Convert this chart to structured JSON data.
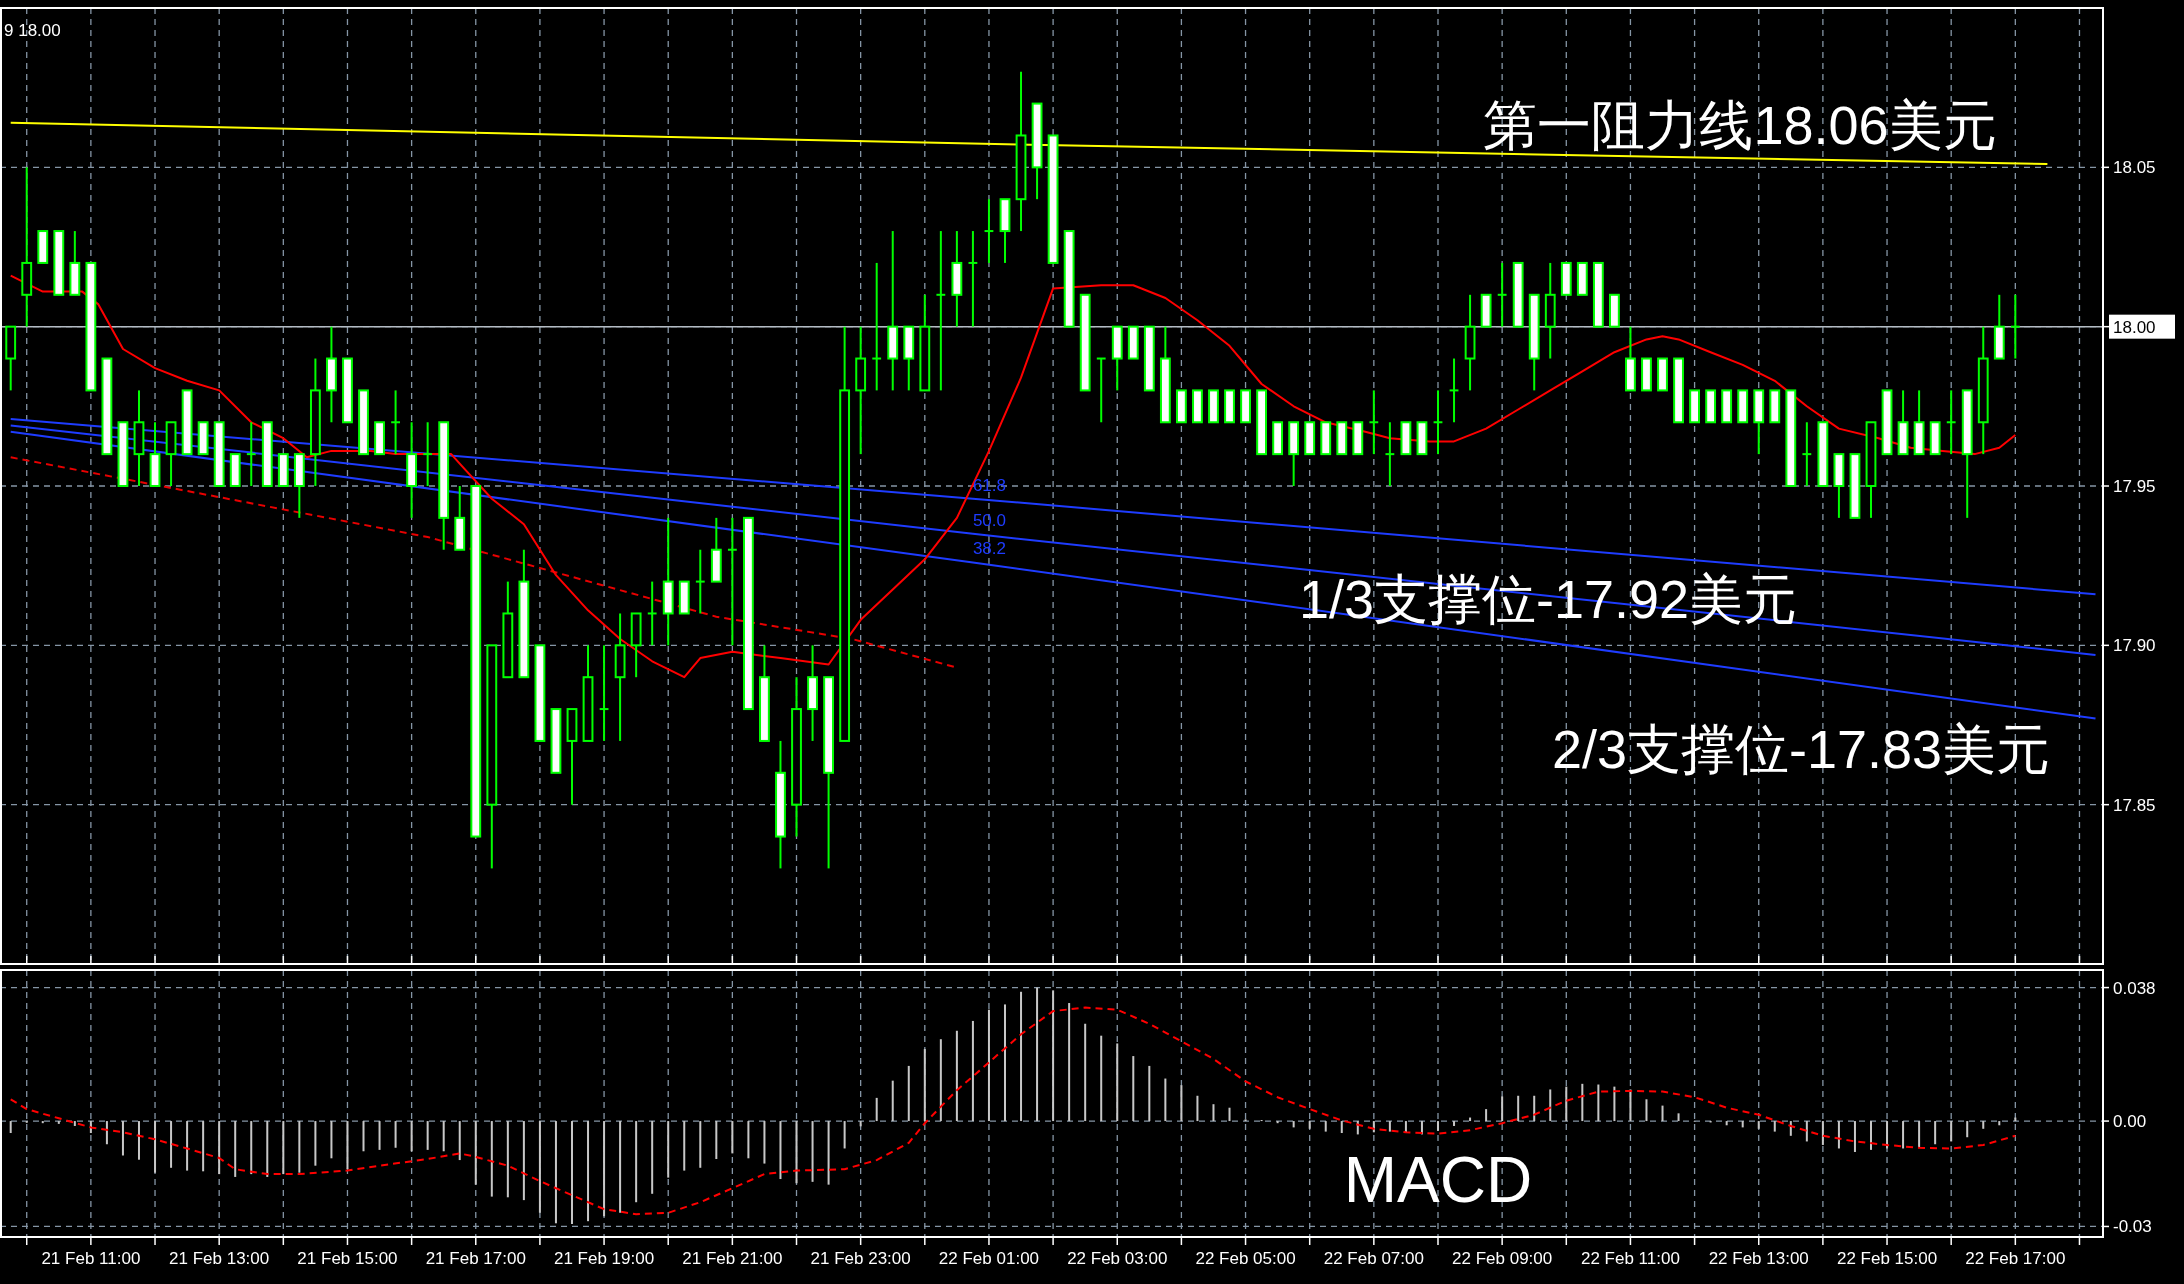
{
  "chart_data": [
    {
      "type": "candlestick",
      "xlim": [
        "--02-21T09:35",
        "--02-22T18:22"
      ],
      "ylim": [
        17.8,
        18.1
      ],
      "yticks": [
        {
          "value": 17.85,
          "label": "17.85"
        },
        {
          "value": 17.9,
          "label": "17.90"
        },
        {
          "value": 17.95,
          "label": "17.95"
        },
        {
          "value": 18.0,
          "label": "18.00"
        },
        {
          "value": 18.05,
          "label": "18.05"
        }
      ],
      "xticks": [
        {
          "value": "--02-21T10:00",
          "label": null
        },
        {
          "value": "--02-21T11:00",
          "label": null
        },
        {
          "value": "--02-21T12:00",
          "label": null
        },
        {
          "value": "--02-21T13:00",
          "label": null
        },
        {
          "value": "--02-21T14:00",
          "label": null
        },
        {
          "value": "--02-21T15:00",
          "label": null
        },
        {
          "value": "--02-21T16:00",
          "label": null
        },
        {
          "value": "--02-21T17:00",
          "label": null
        },
        {
          "value": "--02-21T18:00",
          "label": null
        },
        {
          "value": "--02-21T19:00",
          "label": null
        },
        {
          "value": "--02-21T20:00",
          "label": null
        },
        {
          "value": "--02-21T21:00",
          "label": null
        },
        {
          "value": "--02-21T22:00",
          "label": null
        },
        {
          "value": "--02-21T23:00",
          "label": null
        },
        {
          "value": "--02-22T00:00",
          "label": null
        },
        {
          "value": "--02-22T01:00",
          "label": null
        },
        {
          "value": "--02-22T02:00",
          "label": null
        },
        {
          "value": "--02-22T03:00",
          "label": null
        },
        {
          "value": "--02-22T04:00",
          "label": null
        },
        {
          "value": "--02-22T05:00",
          "label": null
        },
        {
          "value": "--02-22T06:00",
          "label": null
        },
        {
          "value": "--02-22T07:00",
          "label": null
        },
        {
          "value": "--02-22T08:00",
          "label": null
        },
        {
          "value": "--02-22T09:00",
          "label": null
        },
        {
          "value": "--02-22T10:00",
          "label": null
        },
        {
          "value": "--02-22T11:00",
          "label": null
        },
        {
          "value": "--02-22T12:00",
          "label": null
        },
        {
          "value": "--02-22T13:00",
          "label": null
        },
        {
          "value": "--02-22T14:00",
          "label": null
        },
        {
          "value": "--02-22T15:00",
          "label": null
        },
        {
          "value": "--02-22T16:00",
          "label": null
        },
        {
          "value": "--02-22T17:00",
          "label": null
        },
        {
          "value": "--02-22T18:00",
          "label": null
        }
      ],
      "tick_labels": "y",
      "grid": true,
      "ref_lines": [
        {
          "axis": "y",
          "value": 18.0,
          "color": "#b4bcc4"
        }
      ],
      "annotations": [
        "9 18.00",
        "第一阻力线18.06美元",
        "1/3支撑位-17.92美元",
        "2/3支撑位-17.83美元"
      ],
      "x": [
        "--02-21T09:45",
        "--02-21T10:00",
        "--02-21T10:15",
        "--02-21T10:30",
        "--02-21T10:45",
        "--02-21T11:00",
        "--02-21T11:15",
        "--02-21T11:30",
        "--02-21T11:45",
        "--02-21T12:00",
        "--02-21T12:15",
        "--02-21T12:30",
        "--02-21T12:45",
        "--02-21T13:00",
        "--02-21T13:15",
        "--02-21T13:30",
        "--02-21T13:45",
        "--02-21T14:00",
        "--02-21T14:15",
        "--02-21T14:30",
        "--02-21T14:45",
        "--02-21T15:00",
        "--02-21T15:15",
        "--02-21T15:30",
        "--02-21T15:45",
        "--02-21T16:00",
        "--02-21T16:15",
        "--02-21T16:30",
        "--02-21T16:45",
        "--02-21T17:00",
        "--02-21T17:15",
        "--02-21T17:30",
        "--02-21T17:45",
        "--02-21T18:00",
        "--02-21T18:15",
        "--02-21T18:30",
        "--02-21T18:45",
        "--02-21T19:00",
        "--02-21T19:15",
        "--02-21T19:30",
        "--02-21T19:45",
        "--02-21T20:00",
        "--02-21T20:15",
        "--02-21T20:30",
        "--02-21T20:45",
        "--02-21T21:00",
        "--02-21T21:15",
        "--02-21T21:30",
        "--02-21T21:45",
        "--02-21T22:00",
        "--02-21T22:15",
        "--02-21T22:30",
        "--02-21T22:45",
        "--02-21T23:00",
        "--02-21T23:15",
        "--02-21T23:30",
        "--02-21T23:45",
        "--02-22T00:00",
        "--02-22T00:15",
        "--02-22T00:30",
        "--02-22T00:45",
        "--02-22T01:00",
        "--02-22T01:15",
        "--02-22T01:30",
        "--02-22T01:45",
        "--02-22T02:00",
        "--02-22T02:15",
        "--02-22T02:30",
        "--02-22T02:45",
        "--02-22T03:00",
        "--02-22T03:15",
        "--02-22T03:30",
        "--02-22T03:45",
        "--02-22T04:00",
        "--02-22T04:15",
        "--02-22T04:30",
        "--02-22T04:45",
        "--02-22T05:00",
        "--02-22T05:15",
        "--02-22T05:30",
        "--02-22T05:45",
        "--02-22T06:00",
        "--02-22T06:15",
        "--02-22T06:30",
        "--02-22T06:45",
        "--02-22T07:00",
        "--02-22T07:15",
        "--02-22T07:30",
        "--02-22T07:45",
        "--02-22T08:00",
        "--02-22T08:15",
        "--02-22T08:30",
        "--02-22T08:45",
        "--02-22T09:00",
        "--02-22T09:15",
        "--02-22T09:30",
        "--02-22T09:45",
        "--02-22T10:00",
        "--02-22T10:15",
        "--02-22T10:30",
        "--02-22T10:45",
        "--02-22T11:00",
        "--02-22T11:15",
        "--02-22T11:30",
        "--02-22T11:45",
        "--02-22T12:00",
        "--02-22T12:15",
        "--02-22T12:30",
        "--02-22T12:45",
        "--02-22T13:00",
        "--02-22T13:15",
        "--02-22T13:30",
        "--02-22T13:45",
        "--02-22T14:00",
        "--02-22T14:15",
        "--02-22T14:30",
        "--02-22T14:45",
        "--02-22T15:00",
        "--02-22T15:15",
        "--02-22T15:30",
        "--02-22T15:45",
        "--02-22T16:00",
        "--02-22T16:15",
        "--02-22T16:30",
        "--02-22T16:45",
        "--02-22T17:00"
      ],
      "ohlc": [
        [
          17.99,
          18.0,
          17.98,
          18.0
        ],
        [
          18.01,
          18.05,
          18.0,
          18.02
        ],
        [
          18.03,
          18.03,
          18.02,
          18.02
        ],
        [
          18.03,
          18.03,
          18.01,
          18.01
        ],
        [
          18.02,
          18.03,
          18.01,
          18.01
        ],
        [
          18.02,
          18.02,
          17.98,
          17.98
        ],
        [
          17.99,
          17.99,
          17.96,
          17.96
        ],
        [
          17.97,
          17.97,
          17.95,
          17.95
        ],
        [
          17.96,
          17.98,
          17.95,
          17.97
        ],
        [
          17.96,
          17.97,
          17.95,
          17.95
        ],
        [
          17.96,
          17.97,
          17.95,
          17.97
        ],
        [
          17.98,
          17.98,
          17.96,
          17.96
        ],
        [
          17.97,
          17.97,
          17.96,
          17.96
        ],
        [
          17.97,
          17.97,
          17.95,
          17.95
        ],
        [
          17.96,
          17.96,
          17.95,
          17.95
        ],
        [
          17.96,
          17.97,
          17.95,
          17.96
        ],
        [
          17.97,
          17.97,
          17.95,
          17.95
        ],
        [
          17.96,
          17.96,
          17.95,
          17.95
        ],
        [
          17.96,
          17.96,
          17.94,
          17.95
        ],
        [
          17.96,
          17.99,
          17.95,
          17.98
        ],
        [
          17.99,
          18.0,
          17.97,
          17.98
        ],
        [
          17.99,
          17.99,
          17.97,
          17.97
        ],
        [
          17.98,
          17.98,
          17.96,
          17.96
        ],
        [
          17.97,
          17.97,
          17.96,
          17.96
        ],
        [
          17.97,
          17.98,
          17.96,
          17.97
        ],
        [
          17.96,
          17.97,
          17.94,
          17.95
        ],
        [
          17.96,
          17.97,
          17.95,
          17.96
        ],
        [
          17.97,
          17.97,
          17.93,
          17.94
        ],
        [
          17.94,
          17.95,
          17.93,
          17.93
        ],
        [
          17.95,
          17.95,
          17.84,
          17.84
        ],
        [
          17.85,
          17.9,
          17.83,
          17.9
        ],
        [
          17.89,
          17.92,
          17.89,
          17.91
        ],
        [
          17.92,
          17.93,
          17.89,
          17.89
        ],
        [
          17.9,
          17.9,
          17.87,
          17.87
        ],
        [
          17.88,
          17.88,
          17.86,
          17.86
        ],
        [
          17.87,
          17.88,
          17.85,
          17.88
        ],
        [
          17.87,
          17.9,
          17.87,
          17.89
        ],
        [
          17.88,
          17.9,
          17.87,
          17.88
        ],
        [
          17.89,
          17.91,
          17.87,
          17.9
        ],
        [
          17.9,
          17.91,
          17.89,
          17.91
        ],
        [
          17.91,
          17.92,
          17.9,
          17.91
        ],
        [
          17.92,
          17.94,
          17.9,
          17.91
        ],
        [
          17.92,
          17.92,
          17.91,
          17.91
        ],
        [
          17.92,
          17.93,
          17.91,
          17.92
        ],
        [
          17.93,
          17.94,
          17.92,
          17.92
        ],
        [
          17.93,
          17.94,
          17.9,
          17.93
        ],
        [
          17.94,
          17.94,
          17.88,
          17.88
        ],
        [
          17.89,
          17.9,
          17.87,
          17.87
        ],
        [
          17.86,
          17.87,
          17.83,
          17.84
        ],
        [
          17.85,
          17.89,
          17.84,
          17.88
        ],
        [
          17.89,
          17.9,
          17.87,
          17.88
        ],
        [
          17.89,
          17.89,
          17.83,
          17.86
        ],
        [
          17.87,
          18.0,
          17.87,
          17.98
        ],
        [
          17.98,
          18.0,
          17.96,
          17.99
        ],
        [
          17.99,
          18.02,
          17.98,
          17.99
        ],
        [
          18.0,
          18.03,
          17.98,
          17.99
        ],
        [
          18.0,
          18.0,
          17.98,
          17.99
        ],
        [
          17.98,
          18.01,
          17.98,
          18.0
        ],
        [
          18.01,
          18.03,
          17.98,
          18.01
        ],
        [
          18.02,
          18.03,
          18.0,
          18.01
        ],
        [
          18.02,
          18.03,
          18.0,
          18.02
        ],
        [
          18.03,
          18.04,
          18.02,
          18.03
        ],
        [
          18.04,
          18.04,
          18.02,
          18.03
        ],
        [
          18.04,
          18.08,
          18.03,
          18.06
        ],
        [
          18.07,
          18.07,
          18.04,
          18.05
        ],
        [
          18.06,
          18.06,
          18.02,
          18.02
        ],
        [
          18.03,
          18.03,
          18.0,
          18.0
        ],
        [
          18.01,
          18.01,
          17.98,
          17.98
        ],
        [
          17.99,
          17.99,
          17.97,
          17.99
        ],
        [
          18.0,
          18.0,
          17.98,
          17.99
        ],
        [
          18.0,
          18.0,
          17.99,
          17.99
        ],
        [
          18.0,
          18.0,
          17.98,
          17.98
        ],
        [
          17.99,
          18.0,
          17.97,
          17.97
        ],
        [
          17.98,
          17.98,
          17.97,
          17.97
        ],
        [
          17.98,
          17.98,
          17.97,
          17.97
        ],
        [
          17.98,
          17.98,
          17.97,
          17.97
        ],
        [
          17.98,
          17.98,
          17.97,
          17.97
        ],
        [
          17.98,
          17.98,
          17.97,
          17.97
        ],
        [
          17.98,
          17.98,
          17.96,
          17.96
        ],
        [
          17.97,
          17.97,
          17.96,
          17.96
        ],
        [
          17.97,
          17.97,
          17.95,
          17.96
        ],
        [
          17.97,
          17.97,
          17.96,
          17.96
        ],
        [
          17.97,
          17.97,
          17.96,
          17.96
        ],
        [
          17.97,
          17.97,
          17.96,
          17.96
        ],
        [
          17.97,
          17.97,
          17.96,
          17.96
        ],
        [
          17.97,
          17.98,
          17.96,
          17.97
        ],
        [
          17.96,
          17.97,
          17.95,
          17.96
        ],
        [
          17.97,
          17.97,
          17.96,
          17.96
        ],
        [
          17.97,
          17.97,
          17.96,
          17.96
        ],
        [
          17.97,
          17.98,
          17.96,
          17.97
        ],
        [
          17.98,
          17.99,
          17.97,
          17.98
        ],
        [
          17.99,
          18.01,
          17.98,
          18.0
        ],
        [
          18.01,
          18.01,
          18.0,
          18.0
        ],
        [
          18.01,
          18.02,
          18.0,
          18.01
        ],
        [
          18.02,
          18.02,
          18.0,
          18.0
        ],
        [
          18.01,
          18.01,
          17.98,
          17.99
        ],
        [
          18.0,
          18.02,
          17.99,
          18.01
        ],
        [
          18.02,
          18.02,
          18.01,
          18.01
        ],
        [
          18.02,
          18.02,
          18.01,
          18.01
        ],
        [
          18.02,
          18.02,
          18.0,
          18.0
        ],
        [
          18.01,
          18.01,
          18.0,
          18.0
        ],
        [
          17.99,
          18.0,
          17.98,
          17.98
        ],
        [
          17.99,
          17.99,
          17.98,
          17.98
        ],
        [
          17.99,
          17.99,
          17.98,
          17.98
        ],
        [
          17.99,
          17.99,
          17.97,
          17.97
        ],
        [
          17.98,
          17.98,
          17.97,
          17.97
        ],
        [
          17.98,
          17.98,
          17.97,
          17.97
        ],
        [
          17.98,
          17.98,
          17.97,
          17.97
        ],
        [
          17.98,
          17.98,
          17.97,
          17.97
        ],
        [
          17.98,
          17.98,
          17.96,
          17.97
        ],
        [
          17.98,
          17.98,
          17.97,
          17.97
        ],
        [
          17.98,
          17.98,
          17.95,
          17.95
        ],
        [
          17.96,
          17.97,
          17.95,
          17.96
        ],
        [
          17.97,
          17.97,
          17.95,
          17.95
        ],
        [
          17.96,
          17.96,
          17.94,
          17.95
        ],
        [
          17.96,
          17.96,
          17.94,
          17.94
        ],
        [
          17.95,
          17.97,
          17.94,
          17.97
        ],
        [
          17.98,
          17.98,
          17.96,
          17.96
        ],
        [
          17.97,
          17.98,
          17.96,
          17.96
        ],
        [
          17.97,
          17.98,
          17.96,
          17.96
        ],
        [
          17.97,
          17.97,
          17.96,
          17.96
        ],
        [
          17.97,
          17.98,
          17.96,
          17.97
        ],
        [
          17.98,
          17.98,
          17.94,
          17.96
        ],
        [
          17.97,
          18.0,
          17.96,
          17.99
        ],
        [
          18.0,
          18.01,
          17.99,
          17.99
        ],
        [
          18.0,
          18.01,
          17.99,
          18.0
        ]
      ],
      "series": [
        {
          "type": "line",
          "color": "#ffff00",
          "x": [
            "--02-21T09:45",
            "--02-22T01:52",
            "--02-22T17:30"
          ],
          "values": [
            18.064,
            18.057,
            18.051
          ]
        },
        {
          "type": "line",
          "name": "61.8",
          "color": "#1e3cff",
          "x": [
            "--02-21T09:45",
            "--02-22T00:45",
            "--02-22T18:15"
          ],
          "values": [
            17.971,
            17.946,
            17.916
          ]
        },
        {
          "type": "line",
          "name": "50.0",
          "color": "#1e3cff",
          "x": [
            "--02-21T09:45",
            "--02-22T00:45",
            "--02-22T18:15"
          ],
          "values": [
            17.969,
            17.935,
            17.897
          ]
        },
        {
          "type": "line",
          "name": "38.2",
          "color": "#1e3cff",
          "x": [
            "--02-21T09:45",
            "--02-22T00:45",
            "--02-22T18:15"
          ],
          "values": [
            17.967,
            17.926,
            17.877
          ]
        },
        {
          "type": "line",
          "color": "#e80000",
          "line_style": "dashed",
          "x": [
            "--02-21T09:45",
            "--02-21T16:15",
            "--02-21T20:45",
            "--02-21T22:52",
            "--02-22T00:30"
          ],
          "values": [
            17.959,
            17.934,
            17.909,
            17.902,
            17.893
          ]
        },
        {
          "type": "line",
          "color": "#ff0000",
          "x": [
            "--02-21T09:45",
            "--02-21T10:15",
            "--02-21T10:52",
            "--02-21T11:07",
            "--02-21T11:30",
            "--02-21T12:00",
            "--02-21T12:30",
            "--02-21T13:00",
            "--02-21T13:30",
            "--02-21T14:00",
            "--02-21T14:22",
            "--02-21T14:45",
            "--02-21T15:22",
            "--02-21T15:45",
            "--02-21T16:37",
            "--02-21T16:45",
            "--02-21T17:15",
            "--02-21T17:45",
            "--02-21T18:15",
            "--02-21T18:45",
            "--02-21T19:15",
            "--02-21T19:45",
            "--02-21T20:15",
            "--02-21T20:30",
            "--02-21T21:00",
            "--02-21T21:45",
            "--02-21T22:30",
            "--02-21T23:00",
            "--02-22T00:00",
            "--02-22T00:30",
            "--02-22T01:00",
            "--02-22T01:30",
            "--02-22T02:00",
            "--02-22T02:45",
            "--02-22T03:15",
            "--02-22T03:45",
            "--02-22T04:15",
            "--02-22T04:45",
            "--02-22T05:15",
            "--02-22T05:45",
            "--02-22T06:15",
            "--02-22T06:52",
            "--02-22T07:15",
            "--02-22T07:52",
            "--02-22T08:15",
            "--02-22T08:45",
            "--02-22T09:15",
            "--02-22T09:45",
            "--02-22T10:15",
            "--02-22T10:45",
            "--02-22T11:15",
            "--02-22T11:30",
            "--02-22T11:45",
            "--02-22T12:15",
            "--02-22T12:45",
            "--02-22T13:15",
            "--02-22T13:45",
            "--02-22T14:15",
            "--02-22T14:52",
            "--02-22T15:22",
            "--02-22T15:52",
            "--02-22T16:22",
            "--02-22T16:45",
            "--02-22T17:00"
          ],
          "values": [
            18.016,
            18.011,
            18.011,
            18.007,
            17.993,
            17.987,
            17.983,
            17.98,
            17.97,
            17.965,
            17.959,
            17.961,
            17.961,
            17.96,
            17.96,
            17.957,
            17.946,
            17.938,
            17.922,
            17.911,
            17.902,
            17.895,
            17.89,
            17.896,
            17.898,
            17.896,
            17.894,
            17.908,
            17.927,
            17.94,
            17.961,
            17.984,
            18.012,
            18.013,
            18.013,
            18.009,
            18.002,
            17.994,
            17.982,
            17.975,
            17.97,
            17.967,
            17.965,
            17.964,
            17.964,
            17.968,
            17.974,
            17.98,
            17.986,
            17.992,
            17.996,
            17.997,
            17.996,
            17.992,
            17.988,
            17.983,
            17.975,
            17.968,
            17.965,
            17.962,
            17.961,
            17.96,
            17.962,
            17.966
          ]
        }
      ]
    },
    {
      "type": "bar",
      "xlim": [
        "--02-21T09:35",
        "--02-22T18:22"
      ],
      "ylim": [
        -0.033,
        0.043
      ],
      "yticks": [
        {
          "value": 0.038,
          "label": "0.038"
        },
        {
          "value": 0,
          "label": "0.00"
        },
        {
          "value": -0.03,
          "label": "-0.03"
        }
      ],
      "xticks": [
        {
          "value": "--02-21T10:00",
          "label": null
        },
        {
          "value": "--02-21T11:00",
          "label": "21 Feb 11:00"
        },
        {
          "value": "--02-21T12:00",
          "label": null
        },
        {
          "value": "--02-21T13:00",
          "label": "21 Feb 13:00"
        },
        {
          "value": "--02-21T14:00",
          "label": null
        },
        {
          "value": "--02-21T15:00",
          "label": "21 Feb 15:00"
        },
        {
          "value": "--02-21T16:00",
          "label": null
        },
        {
          "value": "--02-21T17:00",
          "label": "21 Feb 17:00"
        },
        {
          "value": "--02-21T18:00",
          "label": null
        },
        {
          "value": "--02-21T19:00",
          "label": "21 Feb 19:00"
        },
        {
          "value": "--02-21T20:00",
          "label": null
        },
        {
          "value": "--02-21T21:00",
          "label": "21 Feb 21:00"
        },
        {
          "value": "--02-21T22:00",
          "label": null
        },
        {
          "value": "--02-21T23:00",
          "label": "21 Feb 23:00"
        },
        {
          "value": "--02-22T00:00",
          "label": null
        },
        {
          "value": "--02-22T01:00",
          "label": "22 Feb 01:00"
        },
        {
          "value": "--02-22T02:00",
          "label": null
        },
        {
          "value": "--02-22T03:00",
          "label": "22 Feb 03:00"
        },
        {
          "value": "--02-22T04:00",
          "label": null
        },
        {
          "value": "--02-22T05:00",
          "label": "22 Feb 05:00"
        },
        {
          "value": "--02-22T06:00",
          "label": null
        },
        {
          "value": "--02-22T07:00",
          "label": "22 Feb 07:00"
        },
        {
          "value": "--02-22T08:00",
          "label": null
        },
        {
          "value": "--02-22T09:00",
          "label": "22 Feb 09:00"
        },
        {
          "value": "--02-22T10:00",
          "label": null
        },
        {
          "value": "--02-22T11:00",
          "label": "22 Feb 11:00"
        },
        {
          "value": "--02-22T12:00",
          "label": null
        },
        {
          "value": "--02-22T13:00",
          "label": "22 Feb 13:00"
        },
        {
          "value": "--02-22T14:00",
          "label": null
        },
        {
          "value": "--02-22T15:00",
          "label": "22 Feb 15:00"
        },
        {
          "value": "--02-22T16:00",
          "label": null
        },
        {
          "value": "--02-22T17:00",
          "label": "22 Feb 17:00"
        },
        {
          "value": "--02-22T18:00",
          "label": null
        }
      ],
      "grid": true,
      "annotations": [
        "MACD"
      ],
      "series": [
        {
          "type": "bar",
          "color": "#c8c8c8",
          "x": [
            "--02-21T09:45",
            "--02-21T10:00",
            "--02-21T10:15",
            "--02-21T10:30",
            "--02-21T10:45",
            "--02-21T11:00",
            "--02-21T11:15",
            "--02-21T11:30",
            "--02-21T11:45",
            "--02-21T12:00",
            "--02-21T12:15",
            "--02-21T12:30",
            "--02-21T12:45",
            "--02-21T13:00",
            "--02-21T13:15",
            "--02-21T13:30",
            "--02-21T13:45",
            "--02-21T14:00",
            "--02-21T14:15",
            "--02-21T14:30",
            "--02-21T14:45",
            "--02-21T15:00",
            "--02-21T15:15",
            "--02-21T15:30",
            "--02-21T15:45",
            "--02-21T16:00",
            "--02-21T16:15",
            "--02-21T16:30",
            "--02-21T16:45",
            "--02-21T17:00",
            "--02-21T17:15",
            "--02-21T17:30",
            "--02-21T17:45",
            "--02-21T18:00",
            "--02-21T18:15",
            "--02-21T18:30",
            "--02-21T18:45",
            "--02-21T19:00",
            "--02-21T19:15",
            "--02-21T19:30",
            "--02-21T19:45",
            "--02-21T20:00",
            "--02-21T20:15",
            "--02-21T20:30",
            "--02-21T20:45",
            "--02-21T21:00",
            "--02-21T21:15",
            "--02-21T21:30",
            "--02-21T21:45",
            "--02-21T22:00",
            "--02-21T22:15",
            "--02-21T22:30",
            "--02-21T22:45",
            "--02-21T23:00",
            "--02-21T23:15",
            "--02-21T23:30",
            "--02-21T23:45",
            "--02-22T00:00",
            "--02-22T00:15",
            "--02-22T00:30",
            "--02-22T00:45",
            "--02-22T01:00",
            "--02-22T01:15",
            "--02-22T01:30",
            "--02-22T01:45",
            "--02-22T02:00",
            "--02-22T02:15",
            "--02-22T02:30",
            "--02-22T02:45",
            "--02-22T03:00",
            "--02-22T03:15",
            "--02-22T03:30",
            "--02-22T03:45",
            "--02-22T04:00",
            "--02-22T04:15",
            "--02-22T04:30",
            "--02-22T04:45",
            "--02-22T05:00",
            "--02-22T05:15",
            "--02-22T05:30",
            "--02-22T05:45",
            "--02-22T06:00",
            "--02-22T06:15",
            "--02-22T06:30",
            "--02-22T06:45",
            "--02-22T07:00",
            "--02-22T07:15",
            "--02-22T07:30",
            "--02-22T07:45",
            "--02-22T08:00",
            "--02-22T08:15",
            "--02-22T08:30",
            "--02-22T08:45",
            "--02-22T09:00",
            "--02-22T09:15",
            "--02-22T09:30",
            "--02-22T09:45",
            "--02-22T10:00",
            "--02-22T10:15",
            "--02-22T10:30",
            "--02-22T10:45",
            "--02-22T11:00",
            "--02-22T11:15",
            "--02-22T11:30",
            "--02-22T11:45",
            "--02-22T12:00",
            "--02-22T12:15",
            "--02-22T12:30",
            "--02-22T12:45",
            "--02-22T13:00",
            "--02-22T13:15",
            "--02-22T13:30",
            "--02-22T13:45",
            "--02-22T14:00",
            "--02-22T14:15",
            "--02-22T14:30",
            "--02-22T14:45",
            "--02-22T15:00",
            "--02-22T15:15",
            "--02-22T15:30",
            "--02-22T15:45",
            "--02-22T16:00",
            "--02-22T16:15",
            "--02-22T16:30",
            "--02-22T16:45",
            "--02-22T17:00"
          ],
          "values": [
            -0.0034,
            -0.0005,
            -0.0006,
            -0.0008,
            -0.0014,
            -0.0034,
            -0.0066,
            -0.0098,
            -0.011,
            -0.0147,
            -0.0133,
            -0.0141,
            -0.0143,
            -0.0151,
            -0.0159,
            -0.0151,
            -0.0159,
            -0.0151,
            -0.0147,
            -0.0127,
            -0.0106,
            -0.0137,
            -0.0086,
            -0.0082,
            -0.0076,
            -0.0086,
            -0.0082,
            -0.0086,
            -0.0111,
            -0.0181,
            -0.0215,
            -0.0217,
            -0.0225,
            -0.0261,
            -0.0291,
            -0.0293,
            -0.0285,
            -0.0271,
            -0.0261,
            -0.0231,
            -0.0207,
            -0.0161,
            -0.0141,
            -0.0133,
            -0.0108,
            -0.0092,
            -0.0106,
            -0.0121,
            -0.0165,
            -0.0177,
            -0.0173,
            -0.0181,
            -0.0078,
            -0.0015,
            0.0066,
            0.0115,
            0.0157,
            0.0205,
            0.0233,
            0.0257,
            0.0285,
            0.0317,
            0.0332,
            0.0368,
            0.038,
            0.0372,
            0.0336,
            0.0277,
            0.0243,
            0.0221,
            0.0185,
            0.0157,
            0.0121,
            0.0102,
            0.0072,
            0.0048,
            0.0038,
            0.0005,
            0.0003,
            -0.0006,
            -0.0018,
            -0.0022,
            -0.003,
            -0.0034,
            -0.0038,
            -0.0032,
            -0.003,
            -0.0034,
            -0.0038,
            -0.0028,
            -0.0014,
            0.001,
            0.0034,
            0.007,
            0.0072,
            0.0072,
            0.009,
            0.0098,
            0.0106,
            0.0104,
            0.0098,
            0.009,
            0.0062,
            0.0044,
            0.0022,
            0,
            -0.0004,
            -0.0012,
            -0.0018,
            -0.0022,
            -0.003,
            -0.0042,
            -0.0058,
            -0.0068,
            -0.0078,
            -0.0088,
            -0.0082,
            -0.0078,
            -0.0078,
            -0.0074,
            -0.0066,
            -0.0058,
            -0.0046,
            -0.0022,
            -0.0012,
            0.001
          ]
        },
        {
          "type": "line",
          "color": "#ff0000",
          "line_style": "dashed",
          "x": [
            "--02-21T09:45",
            "--02-21T10:00",
            "--02-21T10:30",
            "--02-21T11:00",
            "--02-21T11:30",
            "--02-21T12:00",
            "--02-21T12:30",
            "--02-21T13:00",
            "--02-21T13:15",
            "--02-21T13:45",
            "--02-21T14:15",
            "--02-21T15:00",
            "--02-21T15:30",
            "--02-21T16:15",
            "--02-21T16:45",
            "--02-21T17:00",
            "--02-21T17:30",
            "--02-21T18:00",
            "--02-21T18:30",
            "--02-21T19:00",
            "--02-21T19:30",
            "--02-21T20:00",
            "--02-21T20:30",
            "--02-21T21:00",
            "--02-21T21:30",
            "--02-21T22:00",
            "--02-21T22:45",
            "--02-21T23:15",
            "--02-21T23:45",
            "--02-22T00:00",
            "--02-22T00:30",
            "--02-22T01:00",
            "--02-22T01:30",
            "--02-22T02:00",
            "--02-22T02:30",
            "--02-22T03:00",
            "--02-22T03:30",
            "--02-22T04:00",
            "--02-22T04:30",
            "--02-22T05:00",
            "--02-22T05:30",
            "--02-22T06:00",
            "--02-22T06:30",
            "--02-22T07:00",
            "--02-22T07:30",
            "--02-22T08:00",
            "--02-22T08:30",
            "--02-22T09:00",
            "--02-22T09:30",
            "--02-22T10:00",
            "--02-22T10:30",
            "--02-22T11:00",
            "--02-22T11:30",
            "--02-22T12:00",
            "--02-22T12:30",
            "--02-22T13:00",
            "--02-22T13:30",
            "--02-22T14:00",
            "--02-22T14:30",
            "--02-22T15:00",
            "--02-22T15:30",
            "--02-22T16:00",
            "--02-22T16:30",
            "--02-22T17:00"
          ],
          "values": [
            0.0062,
            0.0034,
            0.0008,
            -0.0018,
            -0.0032,
            -0.0052,
            -0.0078,
            -0.0105,
            -0.0137,
            -0.0151,
            -0.0151,
            -0.0141,
            -0.0127,
            -0.0108,
            -0.0092,
            -0.0102,
            -0.0127,
            -0.0171,
            -0.0211,
            -0.0251,
            -0.0265,
            -0.0261,
            -0.0231,
            -0.0191,
            -0.0151,
            -0.0141,
            -0.0137,
            -0.0111,
            -0.0062,
            -0.0006,
            0.0088,
            0.0167,
            0.0247,
            0.0313,
            0.0323,
            0.0317,
            0.0277,
            0.0227,
            0.0177,
            0.0113,
            0.0068,
            0.0034,
            0.0002,
            -0.0022,
            -0.0032,
            -0.0036,
            -0.0026,
            -0.0006,
            0.0018,
            0.0058,
            0.0084,
            0.0086,
            0.0084,
            0.0068,
            0.0038,
            0.0018,
            -0.0014,
            -0.0042,
            -0.0058,
            -0.0068,
            -0.0076,
            -0.0078,
            -0.0068,
            -0.0042
          ]
        }
      ]
    }
  ]
}
